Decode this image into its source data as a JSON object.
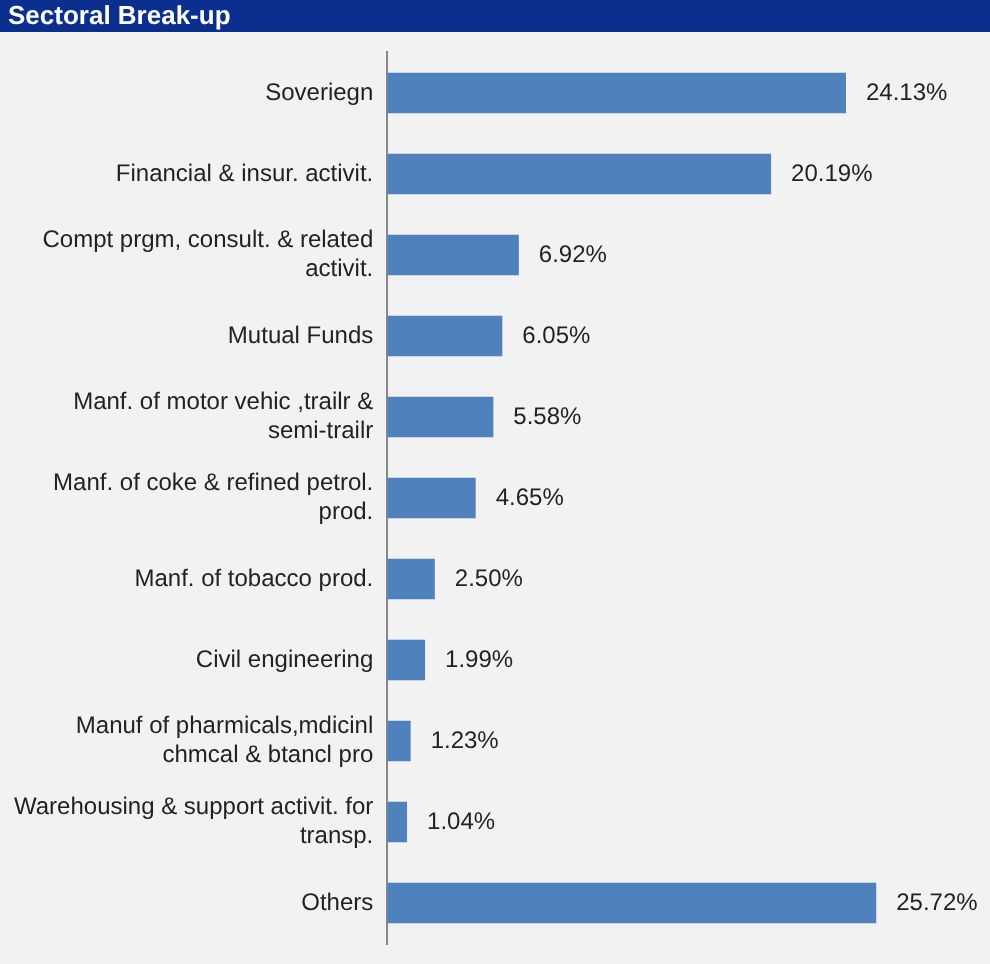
{
  "chart_data": {
    "type": "bar",
    "orientation": "horizontal",
    "title": "Sectoral Break-up",
    "categories": [
      "Soveriegn",
      "Financial & insur. activit.",
      "Compt prgm, consult. & related activit.",
      "Mutual Funds",
      "Manf. of motor vehic ,trailr & semi-trailr",
      "Manf. of coke & refined petrol. prod.",
      "Manf. of tobacco prod.",
      "Civil engineering",
      "Manuf of pharmicals,mdicinl chmcal & btancl pro",
      "Warehousing & support activit. for transp.",
      "Others"
    ],
    "values": [
      24.13,
      20.19,
      6.92,
      6.05,
      5.58,
      4.65,
      2.5,
      1.99,
      1.23,
      1.04,
      25.72
    ],
    "value_labels": [
      "24.13%",
      "20.19%",
      "6.92%",
      "6.05%",
      "5.58%",
      "4.65%",
      "2.50%",
      "1.99%",
      "1.23%",
      "1.04%",
      "25.72%"
    ],
    "color": "#4f81bd",
    "legend": false
  }
}
